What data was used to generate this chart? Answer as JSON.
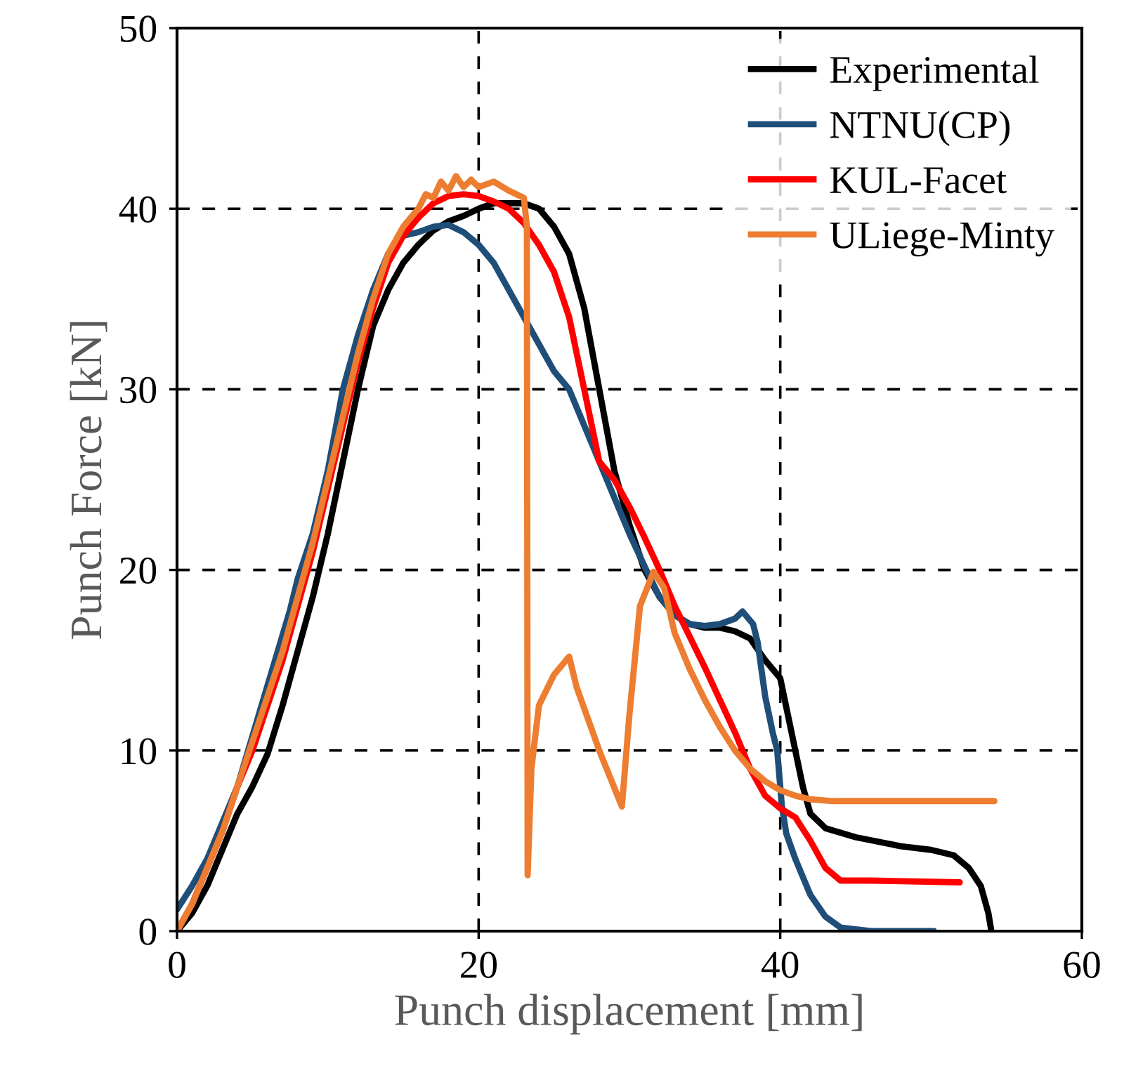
{
  "chart_data": {
    "type": "line",
    "xlabel": "Punch displacement [mm]",
    "ylabel": "Punch Force [kN]",
    "xlim": [
      0,
      60
    ],
    "ylim": [
      0,
      50
    ],
    "xticks": [
      0,
      20,
      40,
      60
    ],
    "yticks": [
      0,
      10,
      20,
      30,
      40,
      50
    ],
    "grid": true,
    "legend": "top right",
    "line_style": "solid",
    "marker": "none",
    "series": [
      {
        "name": "Experimental",
        "color": "#000000",
        "x": [
          0,
          1,
          2,
          3,
          4,
          5,
          6,
          7,
          8,
          9,
          10,
          11,
          12,
          13,
          14,
          15,
          16,
          17,
          18,
          19,
          20,
          21,
          22,
          23,
          24,
          25,
          26,
          27,
          28,
          29,
          30,
          31,
          32,
          33,
          34,
          35,
          36,
          37,
          38,
          39,
          40,
          40.5,
          41,
          41.5,
          42,
          43,
          45,
          48,
          50,
          51.5,
          52.5,
          53.3,
          53.8,
          54
        ],
        "values": [
          0,
          1,
          2.5,
          4.5,
          6.5,
          8,
          9.8,
          12.5,
          15.5,
          18.5,
          22,
          26,
          30,
          33.5,
          35.5,
          37,
          38,
          38.8,
          39.3,
          39.6,
          40,
          40.3,
          40.3,
          40.3,
          40,
          39,
          37.5,
          34.5,
          30,
          25.5,
          22.5,
          20,
          18.5,
          17.5,
          17,
          16.8,
          16.8,
          16.6,
          16.2,
          15,
          14,
          12,
          10,
          8,
          6.5,
          5.7,
          5.2,
          4.7,
          4.5,
          4.2,
          3.5,
          2.5,
          1,
          0
        ]
      },
      {
        "name": "NTNU(CP)",
        "color": "#1f4e79",
        "x": [
          0,
          1,
          2,
          3,
          4,
          5,
          6,
          7,
          7.5,
          8,
          9,
          10,
          11,
          12,
          13,
          14,
          15,
          16,
          17,
          18,
          19,
          20,
          21,
          22,
          23,
          24,
          25,
          26,
          27,
          28,
          29,
          30,
          31,
          32,
          33,
          34,
          35,
          36,
          37,
          37.5,
          38.2,
          38.5,
          39,
          39.5,
          39.8,
          40.1,
          40.4,
          41,
          42,
          43,
          44,
          46,
          50.2
        ],
        "values": [
          1.2,
          2.5,
          4,
          6,
          8,
          10.8,
          13.6,
          16.4,
          17.8,
          19.5,
          22,
          25.5,
          30,
          33,
          35.5,
          37.5,
          38.5,
          38.7,
          39,
          39.1,
          38.7,
          38,
          37,
          35.5,
          34,
          32.5,
          31,
          30,
          28,
          26,
          24,
          22,
          20.2,
          18.5,
          17.5,
          17,
          16.9,
          17,
          17.3,
          17.7,
          17,
          16,
          13,
          11,
          10,
          7,
          5.4,
          4,
          2,
          0.8,
          0.2,
          0,
          0
        ]
      },
      {
        "name": "KUL-Facet",
        "color": "#ff0000",
        "x": [
          0,
          1,
          2,
          3,
          4,
          5,
          6,
          7,
          8,
          9,
          10,
          11,
          12,
          13,
          14,
          15,
          16,
          17,
          18,
          19,
          20,
          21,
          22,
          23,
          24,
          25,
          26,
          27,
          28,
          29,
          30,
          31,
          32,
          33,
          34,
          35,
          36,
          37,
          38,
          39,
          40,
          41,
          42,
          43,
          44,
          46,
          51.9
        ],
        "values": [
          0,
          1.5,
          3.5,
          5.5,
          8,
          10,
          12.5,
          15,
          18,
          21,
          24.5,
          28,
          31.5,
          34.5,
          37,
          38.5,
          39.5,
          40.3,
          40.7,
          40.8,
          40.7,
          40.4,
          40,
          39.2,
          38,
          36.5,
          34,
          30,
          26,
          25,
          23.5,
          21.8,
          20,
          18,
          16.3,
          14.6,
          12.8,
          11,
          9,
          7.5,
          6.8,
          6.3,
          5,
          3.5,
          2.8,
          2.8,
          2.7
        ]
      },
      {
        "name": "ULiege-Minty",
        "color": "#ed7d31",
        "x": [
          0,
          1,
          2,
          3,
          4,
          5,
          6,
          7,
          8,
          9,
          10,
          11,
          12,
          13,
          14,
          15,
          16,
          16.5,
          17,
          17.5,
          18,
          18.5,
          19,
          19.5,
          20,
          21,
          22,
          23,
          23.2,
          23.25,
          23.5,
          24,
          25,
          26,
          26.5,
          28,
          29.5,
          30,
          30.7,
          31.6,
          32.3,
          33,
          34,
          35,
          36,
          37,
          38,
          39,
          40,
          41,
          42,
          43.5,
          54.2
        ],
        "values": [
          0,
          1.5,
          3.5,
          5.5,
          8,
          10.5,
          13,
          15.5,
          18.5,
          21.5,
          25,
          28.5,
          32,
          35,
          37.5,
          39,
          40,
          40.8,
          40.6,
          41.5,
          41,
          41.8,
          41.2,
          41.6,
          41.2,
          41.5,
          41,
          40.6,
          39,
          3.1,
          9,
          12.5,
          14.2,
          15.2,
          13.5,
          10,
          6.9,
          12,
          18,
          19.9,
          19,
          16.5,
          14.5,
          12.8,
          11.3,
          10,
          9,
          8.3,
          7.8,
          7.5,
          7.3,
          7.2,
          7.2
        ]
      }
    ]
  }
}
